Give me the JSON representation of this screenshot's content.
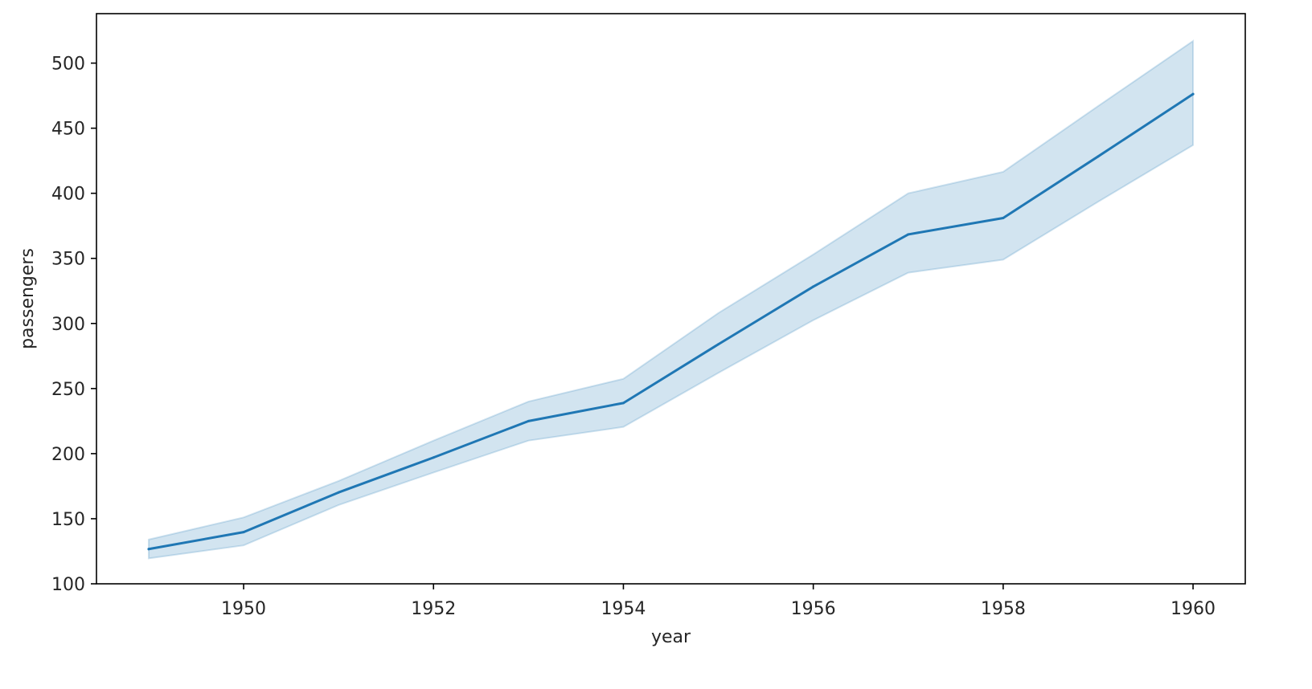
{
  "chart_data": {
    "type": "line",
    "title": "",
    "xlabel": "year",
    "ylabel": "passengers",
    "xlim": [
      1948.45,
      1960.55
    ],
    "ylim": [
      100,
      538
    ],
    "xticks": [
      1950,
      1952,
      1954,
      1956,
      1958,
      1960
    ],
    "xtick_labels": [
      "1950",
      "1952",
      "1954",
      "1956",
      "1958",
      "1960"
    ],
    "yticks": [
      100,
      150,
      200,
      250,
      300,
      350,
      400,
      450,
      500
    ],
    "ytick_labels": [
      "100",
      "150",
      "200",
      "250",
      "300",
      "350",
      "400",
      "450",
      "500"
    ],
    "grid": false,
    "legend": "none",
    "colors": {
      "line": "#1f77b4",
      "band": "#1f77b4",
      "axes": "#000000",
      "text": "#262626"
    },
    "series": [
      {
        "x": [
          1949,
          1950,
          1951,
          1952,
          1953,
          1954,
          1955,
          1956,
          1957,
          1958,
          1959,
          1960
        ],
        "values": [
          126.7,
          139.7,
          170.2,
          197.0,
          225.0,
          238.9,
          284.0,
          328.3,
          368.4,
          381.0,
          428.3,
          476.2
        ],
        "ci_lower": [
          119.5,
          129.5,
          160.5,
          185.5,
          210.0,
          220.5,
          262.0,
          302.5,
          339.0,
          349.0,
          393.5,
          437.0
        ],
        "ci_upper": [
          134.0,
          151.0,
          179.0,
          210.0,
          240.0,
          257.5,
          308.0,
          353.0,
          400.0,
          416.5,
          467.0,
          517.0
        ]
      }
    ]
  }
}
